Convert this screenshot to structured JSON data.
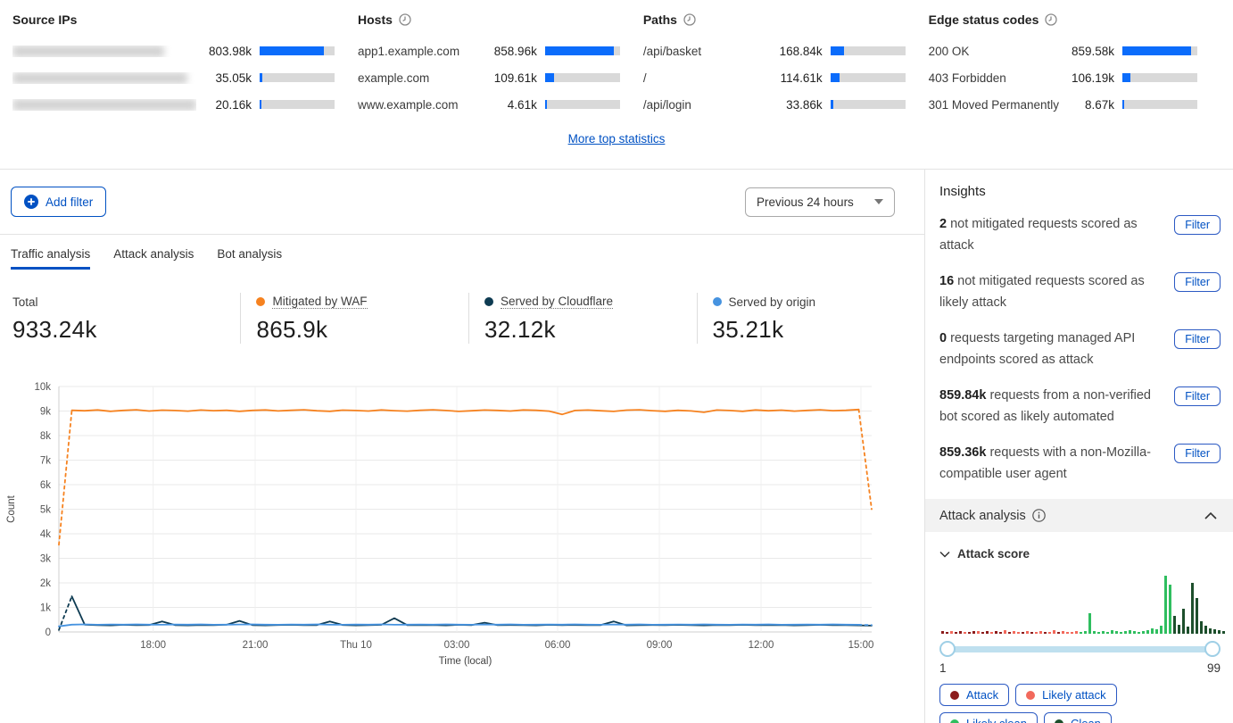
{
  "top_stats": {
    "more_link": "More top statistics",
    "columns": [
      {
        "title": "Source IPs",
        "has_time_icon": false,
        "rows": [
          {
            "label": "",
            "blurred": true,
            "blob_w": 170,
            "value": "803.98k",
            "fill": 86
          },
          {
            "label": "",
            "blurred": true,
            "blob_w": 196,
            "value": "35.05k",
            "fill": 4
          },
          {
            "label": "",
            "blurred": true,
            "blob_w": 206,
            "value": "20.16k",
            "fill": 2
          }
        ]
      },
      {
        "title": "Hosts",
        "has_time_icon": true,
        "rows": [
          {
            "label": "app1.example.com",
            "value": "858.96k",
            "fill": 92
          },
          {
            "label": "example.com",
            "value": "109.61k",
            "fill": 12
          },
          {
            "label": "www.example.com",
            "value": "4.61k",
            "fill": 1
          }
        ]
      },
      {
        "title": "Paths",
        "has_time_icon": true,
        "rows": [
          {
            "label": "/api/basket",
            "value": "168.84k",
            "fill": 18
          },
          {
            "label": "/",
            "value": "114.61k",
            "fill": 12
          },
          {
            "label": "/api/login",
            "value": "33.86k",
            "fill": 4
          }
        ]
      },
      {
        "title": "Edge status codes",
        "has_time_icon": true,
        "rows": [
          {
            "label": "200 OK",
            "value": "859.58k",
            "fill": 92
          },
          {
            "label": "403 Forbidden",
            "value": "106.19k",
            "fill": 11
          },
          {
            "label": "301 Moved Permanently",
            "value": "8.67k",
            "fill": 1
          }
        ]
      }
    ]
  },
  "toolbar": {
    "add_filter_label": "Add filter",
    "time_range": "Previous 24 hours"
  },
  "tabs": [
    {
      "label": "Traffic analysis",
      "active": true
    },
    {
      "label": "Attack analysis",
      "active": false
    },
    {
      "label": "Bot analysis",
      "active": false
    }
  ],
  "summary_cards": [
    {
      "label": "Total",
      "value": "933.24k",
      "dot": "",
      "underline": false
    },
    {
      "label": "Mitigated by WAF",
      "value": "865.9k",
      "dot": "#f6821f",
      "underline": true
    },
    {
      "label": "Served by Cloudflare",
      "value": "32.12k",
      "dot": "#0e3b52",
      "underline": true
    },
    {
      "label": "Served by origin",
      "value": "35.21k",
      "dot": "#4693e0",
      "underline": false
    }
  ],
  "chart_data": {
    "type": "line",
    "xlabel": "Time (local)",
    "ylabel": "Count",
    "ylim": [
      0,
      10000
    ],
    "grid": true,
    "y_ticks": [
      "0",
      "1k",
      "2k",
      "3k",
      "4k",
      "5k",
      "6k",
      "7k",
      "8k",
      "9k",
      "10k"
    ],
    "x_ticks": [
      {
        "label": "18:00",
        "f": 0.116
      },
      {
        "label": "21:00",
        "f": 0.2415
      },
      {
        "label": "Thu 10",
        "f": 0.3656
      },
      {
        "label": "03:00",
        "f": 0.4896
      },
      {
        "label": "06:00",
        "f": 0.6136
      },
      {
        "label": "09:00",
        "f": 0.7388
      },
      {
        "label": "12:00",
        "f": 0.8639
      },
      {
        "label": "15:00",
        "f": 0.9868
      }
    ],
    "series": [
      {
        "name": "Mitigated by WAF",
        "color": "#f6821f",
        "dashed_head": 1,
        "dashed_tail": 1,
        "values": [
          3553,
          9030,
          9010,
          9045,
          8990,
          9025,
          9050,
          9000,
          9035,
          9020,
          8995,
          9040,
          9015,
          9030,
          8990,
          9025,
          9045,
          9005,
          9030,
          9050,
          9010,
          8990,
          9035,
          9020,
          9000,
          9045,
          9015,
          8995,
          9030,
          9050,
          9020,
          8985,
          9010,
          9040,
          9025,
          9000,
          9045,
          9030,
          8995,
          8860,
          9020,
          9040,
          9010,
          8985,
          9035,
          9050,
          9015,
          8990,
          9030,
          9005,
          8950,
          9040,
          9020,
          8990,
          9045,
          9010,
          9035,
          8995,
          9025,
          9050,
          9015,
          9030,
          9060,
          5000
        ]
      },
      {
        "name": "Served by Cloudflare",
        "color": "#0e3b52",
        "dashed_head": 1,
        "dashed_tail": 0,
        "values": [
          80,
          1450,
          300,
          280,
          270,
          290,
          275,
          285,
          430,
          280,
          270,
          285,
          275,
          295,
          450,
          280,
          270,
          285,
          290,
          275,
          280,
          430,
          285,
          270,
          280,
          290,
          560,
          280,
          275,
          285,
          270,
          290,
          280,
          380,
          275,
          285,
          280,
          270,
          290,
          280,
          285,
          275,
          280,
          430,
          270,
          280,
          285,
          275,
          290,
          280,
          270,
          285,
          280,
          290,
          275,
          280,
          285,
          270,
          280,
          290,
          275,
          280,
          270,
          260
        ]
      },
      {
        "name": "Served by origin",
        "color": "#4693e0",
        "dashed_head": 0,
        "dashed_tail": 1,
        "values": [
          230,
          300,
          310,
          295,
          305,
          300,
          310,
          300,
          295,
          305,
          300,
          310,
          295,
          300,
          305,
          310,
          300,
          295,
          305,
          300,
          310,
          300,
          295,
          305,
          300,
          310,
          295,
          300,
          305,
          300,
          310,
          300,
          295,
          305,
          300,
          310,
          295,
          300,
          305,
          300,
          310,
          300,
          295,
          305,
          300,
          310,
          295,
          300,
          305,
          300,
          310,
          300,
          295,
          305,
          300,
          310,
          295,
          300,
          305,
          300,
          310,
          300,
          295,
          280
        ]
      }
    ]
  },
  "insights": {
    "title": "Insights",
    "filter_label": "Filter",
    "items": [
      {
        "count": "2",
        "text": "not mitigated requests scored as attack"
      },
      {
        "count": "16",
        "text": "not mitigated requests scored as likely attack"
      },
      {
        "count": "0",
        "text": "requests targeting managed API endpoints scored as attack"
      },
      {
        "count": "859.84k",
        "text": "requests from a non-verified bot scored as likely automated"
      },
      {
        "count": "859.36k",
        "text": "requests with a non-Mozilla-compatible user agent"
      }
    ]
  },
  "attack_panel": {
    "title": "Attack analysis",
    "subsection": "Attack score",
    "range_min": "1",
    "range_max": "99",
    "legend": [
      {
        "label": "Attack",
        "color": "#8c1c1c"
      },
      {
        "label": "Likely attack",
        "color": "#f2695c"
      },
      {
        "label": "Likely clean",
        "color": "#2fbe5f"
      },
      {
        "label": "Clean",
        "color": "#1d4f2c"
      }
    ],
    "histogram": {
      "colors": {
        "a": "#8c1c1c",
        "la": "#f2695c",
        "lc": "#2fbe5f",
        "c": "#1d4f2c"
      },
      "bars": [
        [
          3,
          "a"
        ],
        [
          2,
          "a"
        ],
        [
          3,
          "la"
        ],
        [
          2,
          "a"
        ],
        [
          3,
          "a"
        ],
        [
          2,
          "la"
        ],
        [
          2,
          "a"
        ],
        [
          3,
          "a"
        ],
        [
          3,
          "la"
        ],
        [
          2,
          "a"
        ],
        [
          3,
          "a"
        ],
        [
          2,
          "la"
        ],
        [
          3,
          "a"
        ],
        [
          2,
          "a"
        ],
        [
          4,
          "la"
        ],
        [
          2,
          "a"
        ],
        [
          3,
          "la"
        ],
        [
          2,
          "la"
        ],
        [
          2,
          "a"
        ],
        [
          3,
          "la"
        ],
        [
          2,
          "a"
        ],
        [
          2,
          "la"
        ],
        [
          3,
          "la"
        ],
        [
          2,
          "a"
        ],
        [
          2,
          "la"
        ],
        [
          4,
          "la"
        ],
        [
          2,
          "a"
        ],
        [
          3,
          "la"
        ],
        [
          2,
          "la"
        ],
        [
          2,
          "la"
        ],
        [
          3,
          "la"
        ],
        [
          2,
          "lc"
        ],
        [
          3,
          "lc"
        ],
        [
          23,
          "lc"
        ],
        [
          3,
          "lc"
        ],
        [
          2,
          "lc"
        ],
        [
          3,
          "lc"
        ],
        [
          2,
          "lc"
        ],
        [
          4,
          "lc"
        ],
        [
          3,
          "lc"
        ],
        [
          2,
          "lc"
        ],
        [
          3,
          "lc"
        ],
        [
          4,
          "lc"
        ],
        [
          3,
          "lc"
        ],
        [
          2,
          "lc"
        ],
        [
          3,
          "lc"
        ],
        [
          4,
          "lc"
        ],
        [
          6,
          "lc"
        ],
        [
          5,
          "lc"
        ],
        [
          9,
          "lc"
        ],
        [
          65,
          "lc"
        ],
        [
          55,
          "lc"
        ],
        [
          20,
          "c"
        ],
        [
          10,
          "c"
        ],
        [
          28,
          "c"
        ],
        [
          8,
          "c"
        ],
        [
          57,
          "c"
        ],
        [
          40,
          "c"
        ],
        [
          14,
          "c"
        ],
        [
          9,
          "c"
        ],
        [
          6,
          "c"
        ],
        [
          5,
          "c"
        ],
        [
          4,
          "c"
        ],
        [
          3,
          "c"
        ]
      ]
    }
  }
}
